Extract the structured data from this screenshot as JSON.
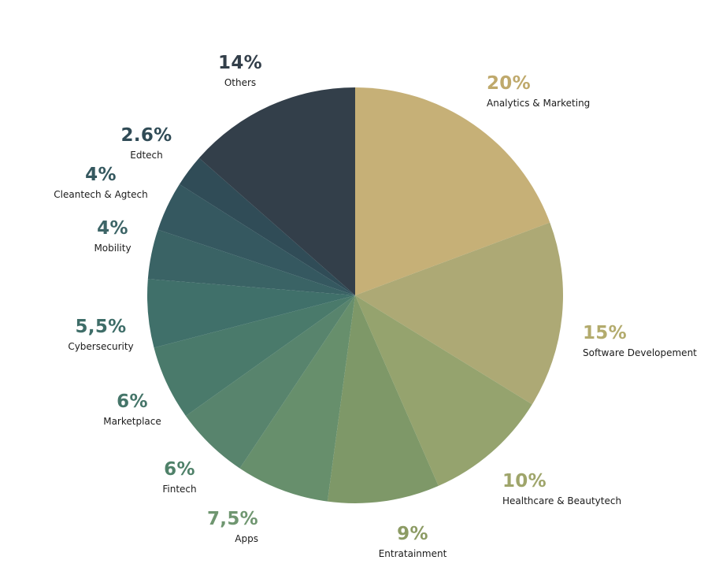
{
  "chart_data": {
    "type": "pie",
    "start": "12 o'clock",
    "direction": "clockwise",
    "slices": [
      {
        "category": "Analytics & Marketing",
        "value": 20,
        "label": "20%",
        "color": "#c6b077",
        "label_color": "#bfa96c"
      },
      {
        "category": "Software Developement",
        "value": 15,
        "label": "15%",
        "color": "#ada975",
        "label_color": "#b3ab6d"
      },
      {
        "category": "Healthcare & Beautytech",
        "value": 10,
        "label": "10%",
        "color": "#95a36e",
        "label_color": "#9fa56b"
      },
      {
        "category": "Entratainment",
        "value": 9,
        "label": "9%",
        "color": "#7e9868",
        "label_color": "#8c9b64"
      },
      {
        "category": "Apps",
        "value": 7.5,
        "label": "7,5%",
        "color": "#678f6c",
        "label_color": "#6f9670"
      },
      {
        "category": "Fintech",
        "value": 6,
        "label": "6%",
        "color": "#58846d",
        "label_color": "#4f8169"
      },
      {
        "category": "Marketplace",
        "value": 6,
        "label": "6%",
        "color": "#4a7a6b",
        "label_color": "#457569"
      },
      {
        "category": "Cybersecurity",
        "value": 5.5,
        "label": "5,5%",
        "color": "#40706a",
        "label_color": "#3e6d68"
      },
      {
        "category": "Mobility",
        "value": 4,
        "label": "4%",
        "color": "#3a6365",
        "label_color": "#3d6567"
      },
      {
        "category": "Cleantech & Agtech",
        "value": 4,
        "label": "4%",
        "color": "#355860",
        "label_color": "#35585f"
      },
      {
        "category": "Edtech",
        "value": 2.6,
        "label": "2.6%",
        "color": "#304c57",
        "label_color": "#304b56"
      },
      {
        "category": "Others",
        "value": 14,
        "label": "14%",
        "color": "#333f4a",
        "label_color": "#333f4a"
      }
    ]
  }
}
